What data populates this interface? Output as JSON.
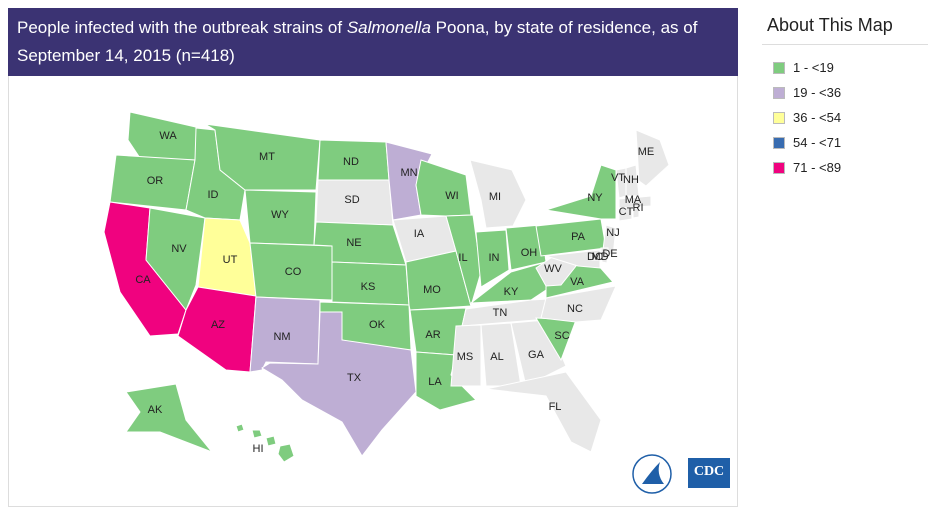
{
  "header": {
    "title_parts": [
      "People infected with the outbreak strains of ",
      "Salmonella",
      " Poona, by state of residence, as of September 14, 2015 (n=418)"
    ]
  },
  "legend": {
    "title": "About This Map",
    "items": [
      {
        "label": "1 - <19",
        "color": "#7fcc7f"
      },
      {
        "label": "19 - <36",
        "color": "#beaed4"
      },
      {
        "label": "36 - <54",
        "color": "#ffff99"
      },
      {
        "label": "54 - <71",
        "color": "#386cb0"
      },
      {
        "label": "71 - <89",
        "color": "#f0027f"
      }
    ]
  },
  "map": {
    "no_data_color": "#e8e8e8",
    "states": [
      {
        "label": "WA",
        "category": 0
      },
      {
        "label": "OR",
        "category": 0
      },
      {
        "label": "CA",
        "category": 4
      },
      {
        "label": "NV",
        "category": 0
      },
      {
        "label": "ID",
        "category": 0
      },
      {
        "label": "MT",
        "category": 0
      },
      {
        "label": "WY",
        "category": 0
      },
      {
        "label": "UT",
        "category": 2
      },
      {
        "label": "AZ",
        "category": 4
      },
      {
        "label": "CO",
        "category": 0
      },
      {
        "label": "NM",
        "category": 1
      },
      {
        "label": "ND",
        "category": 0
      },
      {
        "label": "SD",
        "category": null
      },
      {
        "label": "NE",
        "category": 0
      },
      {
        "label": "KS",
        "category": 0
      },
      {
        "label": "OK",
        "category": 0
      },
      {
        "label": "TX",
        "category": 1
      },
      {
        "label": "MN",
        "category": 1
      },
      {
        "label": "IA",
        "category": null
      },
      {
        "label": "MO",
        "category": 0
      },
      {
        "label": "AR",
        "category": 0
      },
      {
        "label": "LA",
        "category": 0
      },
      {
        "label": "WI",
        "category": 0
      },
      {
        "label": "IL",
        "category": 0
      },
      {
        "label": "MI",
        "category": null
      },
      {
        "label": "IN",
        "category": 0
      },
      {
        "label": "OH",
        "category": 0
      },
      {
        "label": "KY",
        "category": 0
      },
      {
        "label": "TN",
        "category": null
      },
      {
        "label": "MS",
        "category": null
      },
      {
        "label": "AL",
        "category": null
      },
      {
        "label": "GA",
        "category": null
      },
      {
        "label": "FL",
        "category": null
      },
      {
        "label": "SC",
        "category": 0
      },
      {
        "label": "NC",
        "category": null
      },
      {
        "label": "VA",
        "category": 0
      },
      {
        "label": "WV",
        "category": null
      },
      {
        "label": "PA",
        "category": 0
      },
      {
        "label": "NY",
        "category": 0
      },
      {
        "label": "NJ",
        "category": null
      },
      {
        "label": "DE",
        "category": null
      },
      {
        "label": "MD",
        "category": null
      },
      {
        "label": "DC",
        "category": null
      },
      {
        "label": "VT",
        "category": null
      },
      {
        "label": "NH",
        "category": null
      },
      {
        "label": "ME",
        "category": null
      },
      {
        "label": "MA",
        "category": null
      },
      {
        "label": "CT",
        "category": null
      },
      {
        "label": "RI",
        "category": null
      },
      {
        "label": "AK",
        "category": 0
      },
      {
        "label": "HI",
        "category": 0
      }
    ]
  },
  "logo": {
    "text": "CDC"
  }
}
